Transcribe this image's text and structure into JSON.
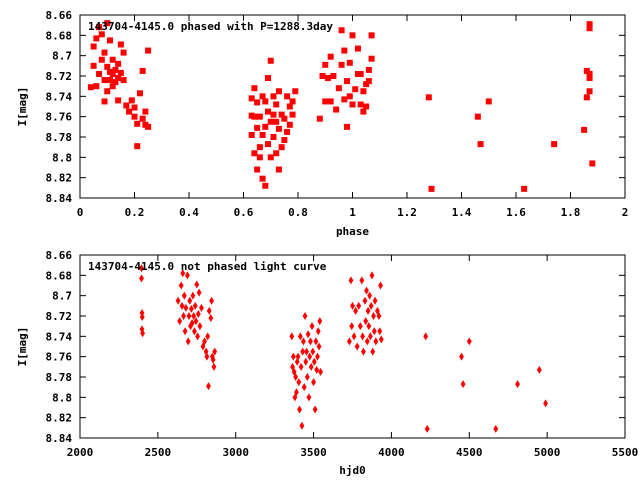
{
  "chart_data": [
    {
      "type": "scatter",
      "title": "143704-4145.0 phased with P=1288.3day",
      "xlabel": "phase",
      "ylabel": "I[mag]",
      "xlim": [
        0,
        2
      ],
      "ylim": [
        8.84,
        8.66
      ],
      "y_inverted": true,
      "xticks": [
        "0",
        "0.2",
        "0.4",
        "0.6",
        "0.8",
        "1",
        "1.2",
        "1.4",
        "1.6",
        "1.8",
        "2"
      ],
      "yticks": [
        "8.66",
        "8.68",
        "8.7",
        "8.72",
        "8.74",
        "8.76",
        "8.78",
        "8.8",
        "8.82",
        "8.84"
      ],
      "marker_color": "#ff0000",
      "series": [
        {
          "points": [
            [
              0.04,
              8.731
            ],
            [
              0.05,
              8.691
            ],
            [
              0.05,
              8.71
            ],
            [
              0.06,
              8.73
            ],
            [
              0.06,
              8.683
            ],
            [
              0.07,
              8.672
            ],
            [
              0.07,
              8.718
            ],
            [
              0.08,
              8.704
            ],
            [
              0.08,
              8.679
            ],
            [
              0.09,
              8.697
            ],
            [
              0.09,
              8.724
            ],
            [
              0.09,
              8.745
            ],
            [
              0.1,
              8.711
            ],
            [
              0.1,
              8.668
            ],
            [
              0.1,
              8.735
            ],
            [
              0.11,
              8.716
            ],
            [
              0.11,
              8.724
            ],
            [
              0.11,
              8.685
            ],
            [
              0.12,
              8.718
            ],
            [
              0.12,
              8.704
            ],
            [
              0.12,
              8.73
            ],
            [
              0.13,
              8.714
            ],
            [
              0.13,
              8.726
            ],
            [
              0.14,
              8.708
            ],
            [
              0.14,
              8.722
            ],
            [
              0.14,
              8.744
            ],
            [
              0.15,
              8.717
            ],
            [
              0.15,
              8.689
            ],
            [
              0.16,
              8.724
            ],
            [
              0.16,
              8.697
            ],
            [
              0.17,
              8.749
            ],
            [
              0.18,
              8.755
            ],
            [
              0.19,
              8.744
            ],
            [
              0.2,
              8.751
            ],
            [
              0.2,
              8.76
            ],
            [
              0.21,
              8.767
            ],
            [
              0.21,
              8.789
            ],
            [
              0.22,
              8.737
            ],
            [
              0.23,
              8.762
            ],
            [
              0.23,
              8.715
            ],
            [
              0.24,
              8.755
            ],
            [
              0.24,
              8.768
            ],
            [
              0.25,
              8.695
            ],
            [
              0.25,
              8.77
            ],
            [
              0.63,
              8.759
            ],
            [
              0.63,
              8.742
            ],
            [
              0.63,
              8.778
            ],
            [
              0.64,
              8.732
            ],
            [
              0.64,
              8.796
            ],
            [
              0.64,
              8.76
            ],
            [
              0.65,
              8.812
            ],
            [
              0.65,
              8.746
            ],
            [
              0.65,
              8.771
            ],
            [
              0.66,
              8.8
            ],
            [
              0.66,
              8.76
            ],
            [
              0.66,
              8.79
            ],
            [
              0.67,
              8.821
            ],
            [
              0.67,
              8.74
            ],
            [
              0.67,
              8.778
            ],
            [
              0.68,
              8.828
            ],
            [
              0.68,
              8.745
            ],
            [
              0.68,
              8.77
            ],
            [
              0.69,
              8.722
            ],
            [
              0.69,
              8.787
            ],
            [
              0.69,
              8.755
            ],
            [
              0.7,
              8.705
            ],
            [
              0.7,
              8.8
            ],
            [
              0.7,
              8.765
            ],
            [
              0.71,
              8.74
            ],
            [
              0.71,
              8.78
            ],
            [
              0.71,
              8.758
            ],
            [
              0.72,
              8.796
            ],
            [
              0.72,
              8.765
            ],
            [
              0.72,
              8.748
            ],
            [
              0.73,
              8.812
            ],
            [
              0.73,
              8.772
            ],
            [
              0.73,
              8.735
            ],
            [
              0.74,
              8.79
            ],
            [
              0.74,
              8.758
            ],
            [
              0.75,
              8.783
            ],
            [
              0.75,
              8.762
            ],
            [
              0.76,
              8.775
            ],
            [
              0.76,
              8.74
            ],
            [
              0.77,
              8.768
            ],
            [
              0.77,
              8.75
            ],
            [
              0.78,
              8.745
            ],
            [
              0.78,
              8.758
            ],
            [
              0.79,
              8.735
            ],
            [
              0.88,
              8.762
            ],
            [
              0.89,
              8.72
            ],
            [
              0.9,
              8.709
            ],
            [
              0.9,
              8.745
            ],
            [
              0.91,
              8.722
            ],
            [
              0.92,
              8.701
            ],
            [
              0.92,
              8.745
            ],
            [
              0.93,
              8.72
            ],
            [
              0.94,
              8.753
            ],
            [
              0.95,
              8.732
            ],
            [
              0.96,
              8.675
            ],
            [
              0.96,
              8.709
            ],
            [
              0.97,
              8.743
            ],
            [
              0.97,
              8.695
            ],
            [
              0.98,
              8.77
            ],
            [
              0.98,
              8.725
            ],
            [
              0.99,
              8.74
            ],
            [
              0.99,
              8.707
            ],
            [
              1.0,
              8.748
            ],
            [
              1.0,
              8.68
            ],
            [
              1.01,
              8.733
            ],
            [
              1.02,
              8.693
            ],
            [
              1.02,
              8.718
            ],
            [
              1.03,
              8.748
            ],
            [
              1.03,
              8.718
            ],
            [
              1.04,
              8.755
            ],
            [
              1.04,
              8.735
            ],
            [
              1.05,
              8.728
            ],
            [
              1.05,
              8.75
            ],
            [
              1.06,
              8.714
            ],
            [
              1.06,
              8.725
            ],
            [
              1.07,
              8.703
            ],
            [
              1.07,
              8.68
            ],
            [
              1.28,
              8.741
            ],
            [
              1.29,
              8.831
            ],
            [
              1.46,
              8.76
            ],
            [
              1.47,
              8.787
            ],
            [
              1.5,
              8.745
            ],
            [
              1.63,
              8.831
            ],
            [
              1.74,
              8.787
            ],
            [
              1.85,
              8.773
            ],
            [
              1.86,
              8.741
            ],
            [
              1.86,
              8.715
            ],
            [
              1.87,
              8.718
            ],
            [
              1.87,
              8.722
            ],
            [
              1.87,
              8.735
            ],
            [
              1.87,
              8.673
            ],
            [
              1.87,
              8.669
            ],
            [
              1.88,
              8.806
            ]
          ]
        }
      ]
    },
    {
      "type": "scatter",
      "title": "143704-4145.0 not phased light curve",
      "xlabel": "hjd0",
      "ylabel": "I[mag]",
      "xlim": [
        2000,
        5500
      ],
      "ylim": [
        8.84,
        8.66
      ],
      "y_inverted": true,
      "xticks": [
        "2000",
        "2500",
        "3000",
        "3500",
        "4000",
        "4500",
        "5000",
        "5500"
      ],
      "yticks": [
        "8.66",
        "8.68",
        "8.7",
        "8.72",
        "8.74",
        "8.76",
        "8.78",
        "8.8",
        "8.82",
        "8.84"
      ],
      "marker_color": "#ff0000",
      "series": [
        {
          "points": [
            [
              2395,
              8.683
            ],
            [
              2395,
              8.673
            ],
            [
              2398,
              8.717
            ],
            [
              2398,
              8.733
            ],
            [
              2400,
              8.721
            ],
            [
              2402,
              8.737
            ],
            [
              2630,
              8.705
            ],
            [
              2640,
              8.725
            ],
            [
              2650,
              8.69
            ],
            [
              2655,
              8.71
            ],
            [
              2660,
              8.678
            ],
            [
              2665,
              8.72
            ],
            [
              2670,
              8.7
            ],
            [
              2675,
              8.735
            ],
            [
              2680,
              8.712
            ],
            [
              2690,
              8.68
            ],
            [
              2695,
              8.745
            ],
            [
              2700,
              8.72
            ],
            [
              2705,
              8.705
            ],
            [
              2710,
              8.73
            ],
            [
              2715,
              8.713
            ],
            [
              2720,
              8.727
            ],
            [
              2725,
              8.7
            ],
            [
              2730,
              8.72
            ],
            [
              2735,
              8.735
            ],
            [
              2740,
              8.71
            ],
            [
              2745,
              8.725
            ],
            [
              2750,
              8.689
            ],
            [
              2755,
              8.74
            ],
            [
              2760,
              8.718
            ],
            [
              2765,
              8.697
            ],
            [
              2770,
              8.73
            ],
            [
              2780,
              8.712
            ],
            [
              2790,
              8.75
            ],
            [
              2800,
              8.745
            ],
            [
              2810,
              8.755
            ],
            [
              2815,
              8.76
            ],
            [
              2820,
              8.74
            ],
            [
              2825,
              8.789
            ],
            [
              2830,
              8.715
            ],
            [
              2840,
              8.722
            ],
            [
              2845,
              8.705
            ],
            [
              2850,
              8.76
            ],
            [
              2855,
              8.763
            ],
            [
              2860,
              8.77
            ],
            [
              2865,
              8.755
            ],
            [
              3360,
              8.74
            ],
            [
              3365,
              8.77
            ],
            [
              3370,
              8.76
            ],
            [
              3375,
              8.775
            ],
            [
              3380,
              8.8
            ],
            [
              3385,
              8.78
            ],
            [
              3390,
              8.795
            ],
            [
              3395,
              8.765
            ],
            [
              3400,
              8.76
            ],
            [
              3405,
              8.785
            ],
            [
              3410,
              8.812
            ],
            [
              3415,
              8.74
            ],
            [
              3420,
              8.77
            ],
            [
              3425,
              8.828
            ],
            [
              3430,
              8.755
            ],
            [
              3435,
              8.745
            ],
            [
              3440,
              8.79
            ],
            [
              3445,
              8.72
            ],
            [
              3450,
              8.765
            ],
            [
              3455,
              8.755
            ],
            [
              3460,
              8.78
            ],
            [
              3465,
              8.738
            ],
            [
              3470,
              8.8
            ],
            [
              3475,
              8.76
            ],
            [
              3480,
              8.745
            ],
            [
              3485,
              8.77
            ],
            [
              3490,
              8.73
            ],
            [
              3495,
              8.755
            ],
            [
              3500,
              8.785
            ],
            [
              3505,
              8.765
            ],
            [
              3510,
              8.812
            ],
            [
              3515,
              8.745
            ],
            [
              3520,
              8.773
            ],
            [
              3525,
              8.76
            ],
            [
              3530,
              8.735
            ],
            [
              3535,
              8.75
            ],
            [
              3540,
              8.725
            ],
            [
              3545,
              8.775
            ],
            [
              3730,
              8.745
            ],
            [
              3740,
              8.685
            ],
            [
              3745,
              8.73
            ],
            [
              3750,
              8.71
            ],
            [
              3760,
              8.74
            ],
            [
              3770,
              8.715
            ],
            [
              3780,
              8.75
            ],
            [
              3790,
              8.71
            ],
            [
              3800,
              8.73
            ],
            [
              3810,
              8.685
            ],
            [
              3815,
              8.74
            ],
            [
              3820,
              8.755
            ],
            [
              3830,
              8.705
            ],
            [
              3835,
              8.725
            ],
            [
              3840,
              8.695
            ],
            [
              3845,
              8.745
            ],
            [
              3850,
              8.715
            ],
            [
              3855,
              8.73
            ],
            [
              3860,
              8.7
            ],
            [
              3865,
              8.74
            ],
            [
              3870,
              8.71
            ],
            [
              3875,
              8.68
            ],
            [
              3880,
              8.755
            ],
            [
              3885,
              8.72
            ],
            [
              3890,
              8.735
            ],
            [
              3895,
              8.705
            ],
            [
              3900,
              8.745
            ],
            [
              3910,
              8.715
            ],
            [
              3920,
              8.72
            ],
            [
              3925,
              8.735
            ],
            [
              3930,
              8.69
            ],
            [
              3935,
              8.743
            ],
            [
              4220,
              8.74
            ],
            [
              4230,
              8.831
            ],
            [
              4450,
              8.76
            ],
            [
              4460,
              8.787
            ],
            [
              4500,
              8.745
            ],
            [
              4670,
              8.831
            ],
            [
              4810,
              8.787
            ],
            [
              4950,
              8.773
            ],
            [
              4990,
              8.806
            ]
          ]
        }
      ]
    }
  ]
}
